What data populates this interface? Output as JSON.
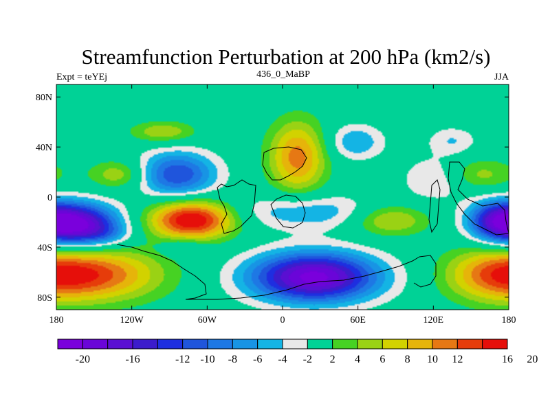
{
  "chart_data": {
    "type": "heatmap",
    "title": "Streamfunction Perturbation at 200 hPa (km2/s)",
    "subtitle_left": "Expt = teYEj",
    "subtitle_center": "436_0_MaBP",
    "subtitle_right": "JJA",
    "x_range": [
      -180,
      180
    ],
    "y_range": [
      -90,
      90
    ],
    "x_ticks": [
      {
        "value": -180,
        "label": "180"
      },
      {
        "value": -120,
        "label": "120W"
      },
      {
        "value": -60,
        "label": "60W"
      },
      {
        "value": 0,
        "label": "0"
      },
      {
        "value": 60,
        "label": "60E"
      },
      {
        "value": 120,
        "label": "120E"
      },
      {
        "value": 180,
        "label": "180"
      }
    ],
    "y_ticks": [
      {
        "value": 80,
        "label": "80N"
      },
      {
        "value": 40,
        "label": "40N"
      },
      {
        "value": 0,
        "label": "0"
      },
      {
        "value": -40,
        "label": "40S"
      },
      {
        "value": -80,
        "label": "80S"
      }
    ],
    "colorbar": {
      "levels": [
        -20,
        -18,
        -16,
        -14,
        -12,
        -10,
        -8,
        -6,
        -4,
        -2,
        2,
        4,
        6,
        8,
        10,
        12,
        14,
        16,
        20
      ],
      "labels": [
        {
          "level": -20,
          "label": "-20"
        },
        {
          "level": -16,
          "label": "-16"
        },
        {
          "level": -12,
          "label": "-12"
        },
        {
          "level": -10,
          "label": "-10"
        },
        {
          "level": -8,
          "label": "-8"
        },
        {
          "level": -6,
          "label": "-6"
        },
        {
          "level": -4,
          "label": "-4"
        },
        {
          "level": -2,
          "label": "-2"
        },
        {
          "level": 2,
          "label": "2"
        },
        {
          "level": 4,
          "label": "4"
        },
        {
          "level": 6,
          "label": "6"
        },
        {
          "level": 8,
          "label": "8"
        },
        {
          "level": 10,
          "label": "10"
        },
        {
          "level": 12,
          "label": "12"
        },
        {
          "level": 16,
          "label": "16"
        },
        {
          "level": 20,
          "label": "20"
        }
      ],
      "colors": [
        "#7a00dc",
        "#6a05d8",
        "#5a0fd2",
        "#3c1ccc",
        "#1e2ee0",
        "#1f55dc",
        "#1e78e4",
        "#1894e4",
        "#14b4e4",
        "#e8e8e8",
        "#00d296",
        "#46d223",
        "#9ad214",
        "#d2d200",
        "#e6b40a",
        "#e67814",
        "#e63c0a",
        "#e60f0a"
      ]
    },
    "background_color": "#e8e8e8",
    "highs": [
      {
        "lon": -150,
        "lat": -62,
        "amp": 12,
        "rx": 38,
        "ry": 15
      },
      {
        "lon": -72,
        "lat": -18,
        "amp": 17,
        "rx": 24,
        "ry": 11
      },
      {
        "lon": -130,
        "lat": 18,
        "amp": 6,
        "rx": 16,
        "ry": 8
      },
      {
        "lon": -95,
        "lat": 52,
        "amp": 6,
        "rx": 18,
        "ry": 6
      },
      {
        "lon": 12,
        "lat": 32,
        "amp": 11,
        "rx": 16,
        "ry": 20
      },
      {
        "lon": 85,
        "lat": -18,
        "amp": 7.5,
        "rx": 22,
        "ry": 9
      },
      {
        "lon": 168,
        "lat": -62,
        "amp": 8,
        "rx": 28,
        "ry": 15
      },
      {
        "lon": 155,
        "lat": 18,
        "amp": 5,
        "rx": 22,
        "ry": 9
      }
    ],
    "lows": [
      {
        "lon": -165,
        "lat": -22,
        "amp": -21,
        "rx": 24,
        "ry": 12
      },
      {
        "lon": -84,
        "lat": 18,
        "amp": -12,
        "rx": 22,
        "ry": 13
      },
      {
        "lon": 25,
        "lat": -64,
        "amp": -21,
        "rx": 36,
        "ry": 14
      },
      {
        "lon": 20,
        "lat": -12,
        "amp": -6,
        "rx": 45,
        "ry": 10
      },
      {
        "lon": 58,
        "lat": 44,
        "amp": -6,
        "rx": 16,
        "ry": 10
      },
      {
        "lon": 135,
        "lat": 45,
        "amp": -4,
        "rx": 14,
        "ry": 8
      },
      {
        "lon": 170,
        "lat": -18,
        "amp": -10,
        "rx": 16,
        "ry": 11
      },
      {
        "lon": -140,
        "lat": -30,
        "amp": -3,
        "rx": 14,
        "ry": 6
      },
      {
        "lon": -80,
        "lat": -40,
        "amp": -4,
        "rx": 12,
        "ry": 5
      },
      {
        "lon": 122,
        "lat": 15,
        "amp": -5,
        "rx": 18,
        "ry": 12
      }
    ]
  }
}
